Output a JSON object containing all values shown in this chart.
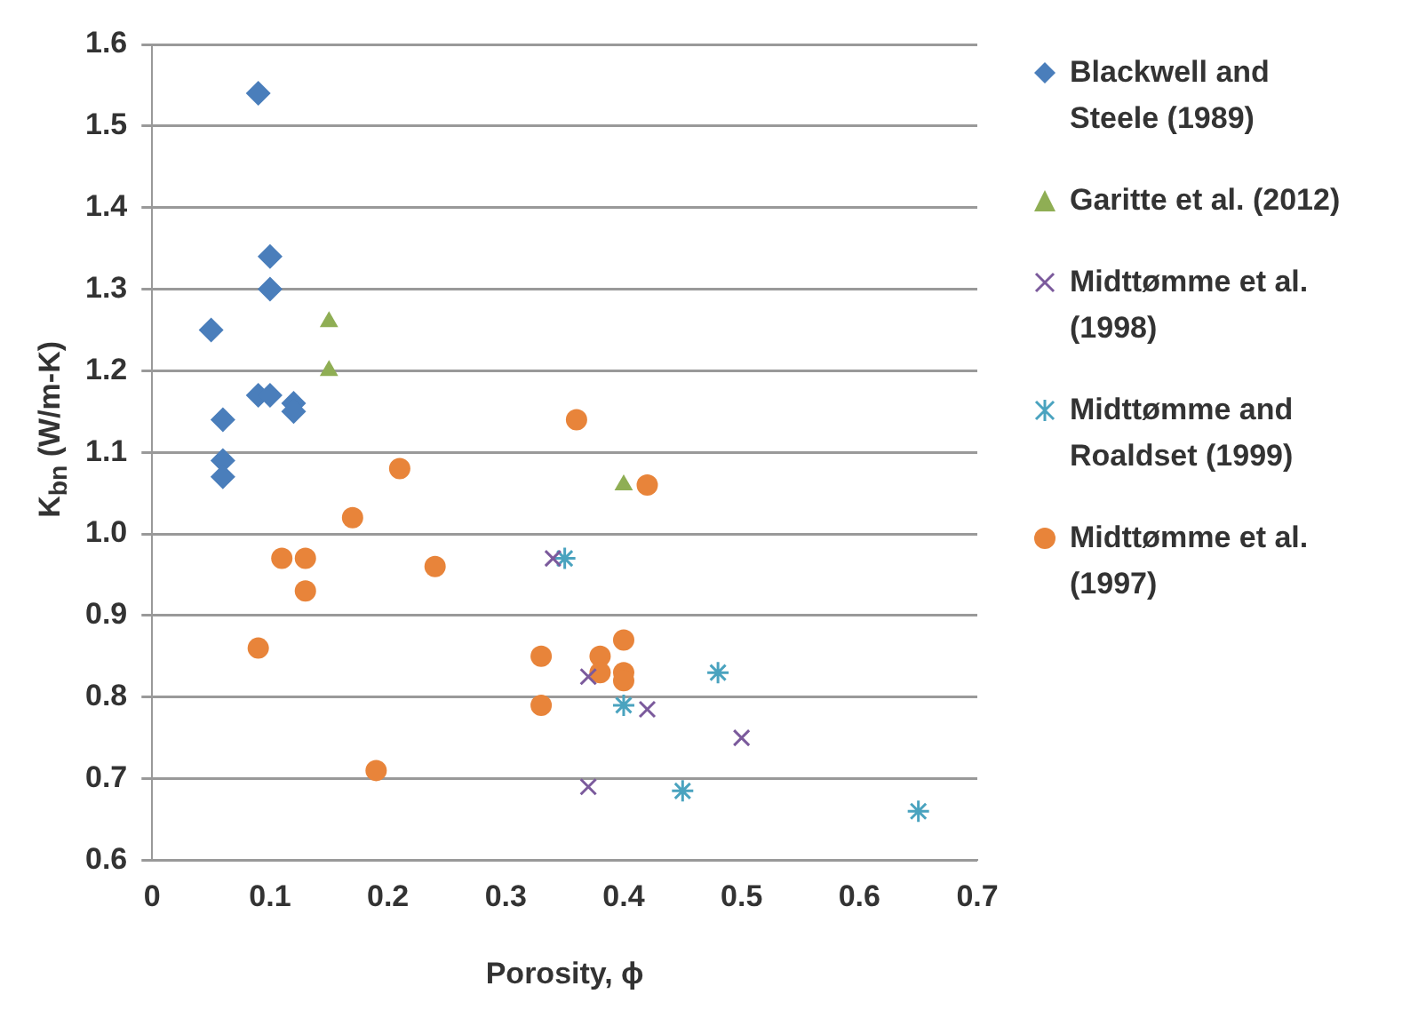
{
  "chart_data": {
    "type": "scatter",
    "xlabel": "Porosity, ϕ",
    "ylabel": "K$_{bn}$ (W/m-K)",
    "xlim": [
      0,
      0.7
    ],
    "xticks": [
      0,
      0.1,
      0.2,
      0.3,
      0.4,
      0.5,
      0.6,
      0.7
    ],
    "ylim": [
      0.6,
      1.6
    ],
    "yticks": [
      0.6,
      0.7,
      0.8,
      0.9,
      {
        "value": 1,
        "label": "1.0"
      },
      1.1,
      1.2,
      1.3,
      1.4,
      1.5,
      1.6
    ],
    "grid": "y",
    "legend": "right",
    "series": [
      {
        "name": "Blackwell and Steele (1989)",
        "color": "#4a7ebb",
        "marker": "diamond",
        "x": [
          0.09,
          0.1,
          0.1,
          0.05,
          0.09,
          0.1,
          0.12,
          0.12,
          0.06,
          0.06,
          0.06
        ],
        "values": [
          1.54,
          1.34,
          1.3,
          1.25,
          1.17,
          1.17,
          1.16,
          1.15,
          1.14,
          1.09,
          1.07
        ]
      },
      {
        "name": "Garitte et al. (2012)",
        "color": "#8fae54",
        "marker": "triangle",
        "x": [
          0.15,
          0.15,
          0.4
        ],
        "values": [
          1.26,
          1.2,
          1.06
        ]
      },
      {
        "name": "Midttømme et al. (1998)",
        "color": "#7b5a9c",
        "marker": "cross",
        "x": [
          0.34,
          0.37,
          0.42,
          0.5,
          0.37
        ],
        "values": [
          0.97,
          0.825,
          0.785,
          0.75,
          0.69
        ]
      },
      {
        "name": "Midttømme and Roaldset (1999)",
        "color": "#4aa3bf",
        "x": [
          0.35,
          0.4,
          0.48,
          0.45,
          0.65
        ],
        "values": [
          0.97,
          0.79,
          0.83,
          0.685,
          0.66
        ]
      },
      {
        "name": "Midttømme et al. (1997)",
        "color": "#e8843a",
        "marker": "circle",
        "x": [
          0.36,
          0.42,
          0.21,
          0.17,
          0.11,
          0.13,
          0.13,
          0.24,
          0.09,
          0.19,
          0.33,
          0.33,
          0.38,
          0.38,
          0.4,
          0.4,
          0.4
        ],
        "values": [
          1.14,
          1.06,
          1.08,
          1.02,
          0.97,
          0.97,
          0.93,
          0.96,
          0.86,
          0.71,
          0.85,
          0.79,
          0.85,
          0.83,
          0.87,
          0.83,
          0.82
        ]
      }
    ]
  }
}
